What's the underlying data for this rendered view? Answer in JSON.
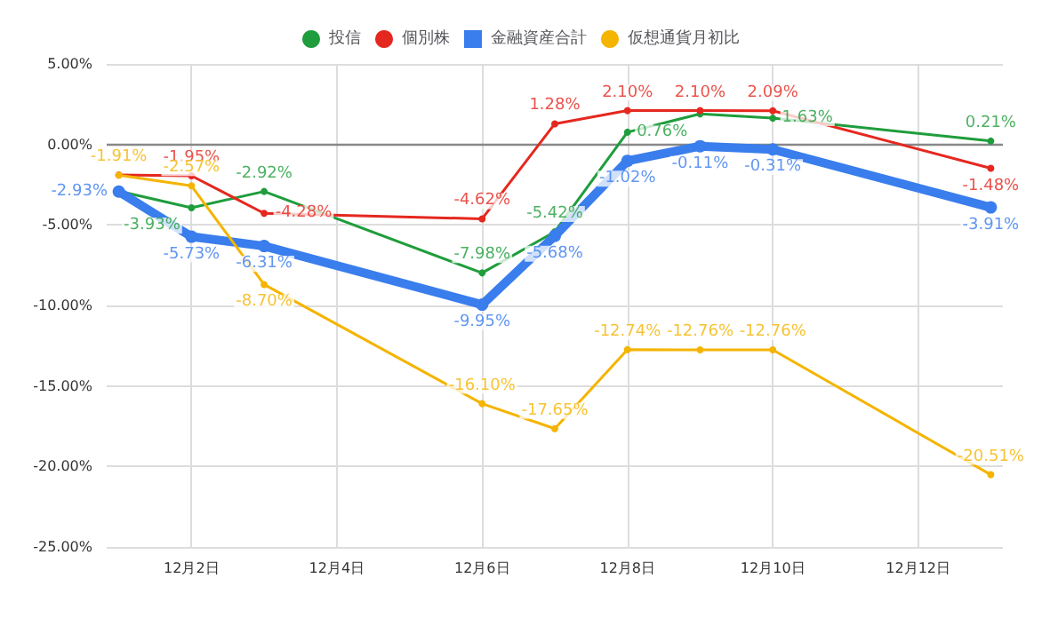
{
  "chart_data": {
    "type": "line",
    "x": [
      "--12-01",
      "--12-02",
      "--12-03",
      "--12-06",
      "--12-07",
      "--12-08",
      "--12-09",
      "--12-10",
      "--12-13"
    ],
    "series": [
      {
        "name": "投信",
        "color": "#1f9d3c",
        "values": [
          -2.9,
          -3.93,
          -2.92,
          -7.98,
          -5.42,
          0.76,
          1.9,
          1.63,
          0.21
        ],
        "value_labels": [
          null,
          "-3.93%",
          "-2.92%",
          "-7.98%",
          "-5.42%",
          "0.76%",
          null,
          "1.63%",
          "0.21%"
        ]
      },
      {
        "name": "個別株",
        "color": "#e5281f",
        "values": [
          -1.9,
          -1.95,
          -4.28,
          -4.62,
          1.28,
          2.1,
          2.1,
          2.09,
          -1.48
        ],
        "value_labels": [
          null,
          "-1.95%",
          "-4.28%",
          "-4.62%",
          "1.28%",
          "2.10%",
          "2.10%",
          "2.09%",
          "-1.48%"
        ]
      },
      {
        "name": "金融資産合計",
        "color": "#3a7ded",
        "values": [
          -2.93,
          -5.73,
          -6.31,
          -9.95,
          -5.68,
          -1.02,
          -0.11,
          -0.31,
          -3.91
        ],
        "value_labels": [
          "-2.93%",
          "-5.73%",
          "-6.31%",
          "-9.95%",
          "-5.68%",
          "-1.02%",
          "-0.11%",
          "-0.31%",
          "-3.91%"
        ]
      },
      {
        "name": "仮想通貨月初比",
        "color": "#f5b400",
        "values": [
          -1.91,
          -2.57,
          -8.7,
          -16.1,
          -17.65,
          -12.74,
          -12.76,
          -12.76,
          -20.51
        ],
        "value_labels": [
          "-1.91%",
          "-2.57%",
          "-8.70%",
          "-16.10%",
          "-17.65%",
          "-12.74%",
          "-12.76%",
          "-12.76%",
          "-20.51%"
        ]
      }
    ],
    "xlim": [
      "--11-30T20:00",
      "--12-13T04:00"
    ],
    "xticks": [
      {
        "value": "--12-02",
        "label": "12月2日"
      },
      {
        "value": "--12-04",
        "label": "12月4日"
      },
      {
        "value": "--12-06",
        "label": "12月6日"
      },
      {
        "value": "--12-08",
        "label": "12月8日"
      },
      {
        "value": "--12-10",
        "label": "12月10日"
      },
      {
        "value": "--12-12",
        "label": "12月12日"
      }
    ],
    "ylim": [
      -25,
      5
    ],
    "yticks": [
      {
        "value": 5,
        "label": "5.00%"
      },
      {
        "value": 0,
        "label": "0.00%"
      },
      {
        "value": -5,
        "label": "-5.00%"
      },
      {
        "value": -10,
        "label": "-10.00%"
      },
      {
        "value": -15,
        "label": "-15.00%"
      },
      {
        "value": -20,
        "label": "-20.00%"
      },
      {
        "value": -25,
        "label": "-25.00%"
      }
    ],
    "ref_lines": [
      {
        "axis": "y",
        "value": 0,
        "color": "#888888"
      }
    ],
    "grid": true,
    "legend": "top",
    "marker": "circle",
    "line_style": "solid"
  }
}
